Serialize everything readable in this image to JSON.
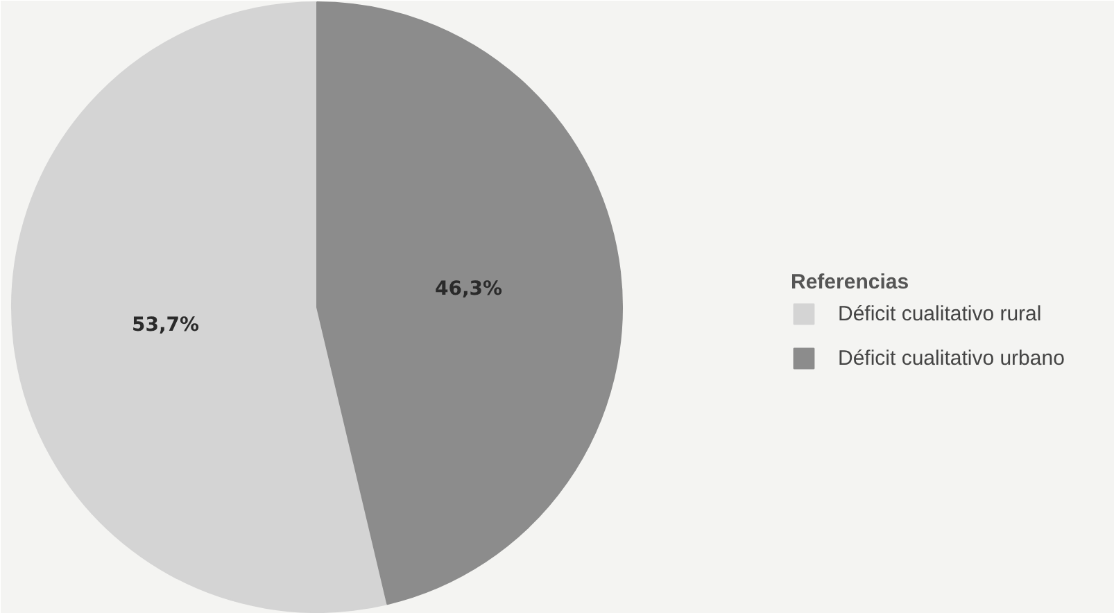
{
  "chart_data": {
    "type": "pie",
    "legend_title": "Referencias",
    "categories": [
      "Déficit cualitativo rural",
      "Déficit cualitativo urbano"
    ],
    "values": [
      53.7,
      46.3
    ],
    "colors": [
      "#d4d4d4",
      "#8c8c8c"
    ],
    "value_labels": [
      "53,7%",
      "46,3%"
    ],
    "legend": "right"
  }
}
